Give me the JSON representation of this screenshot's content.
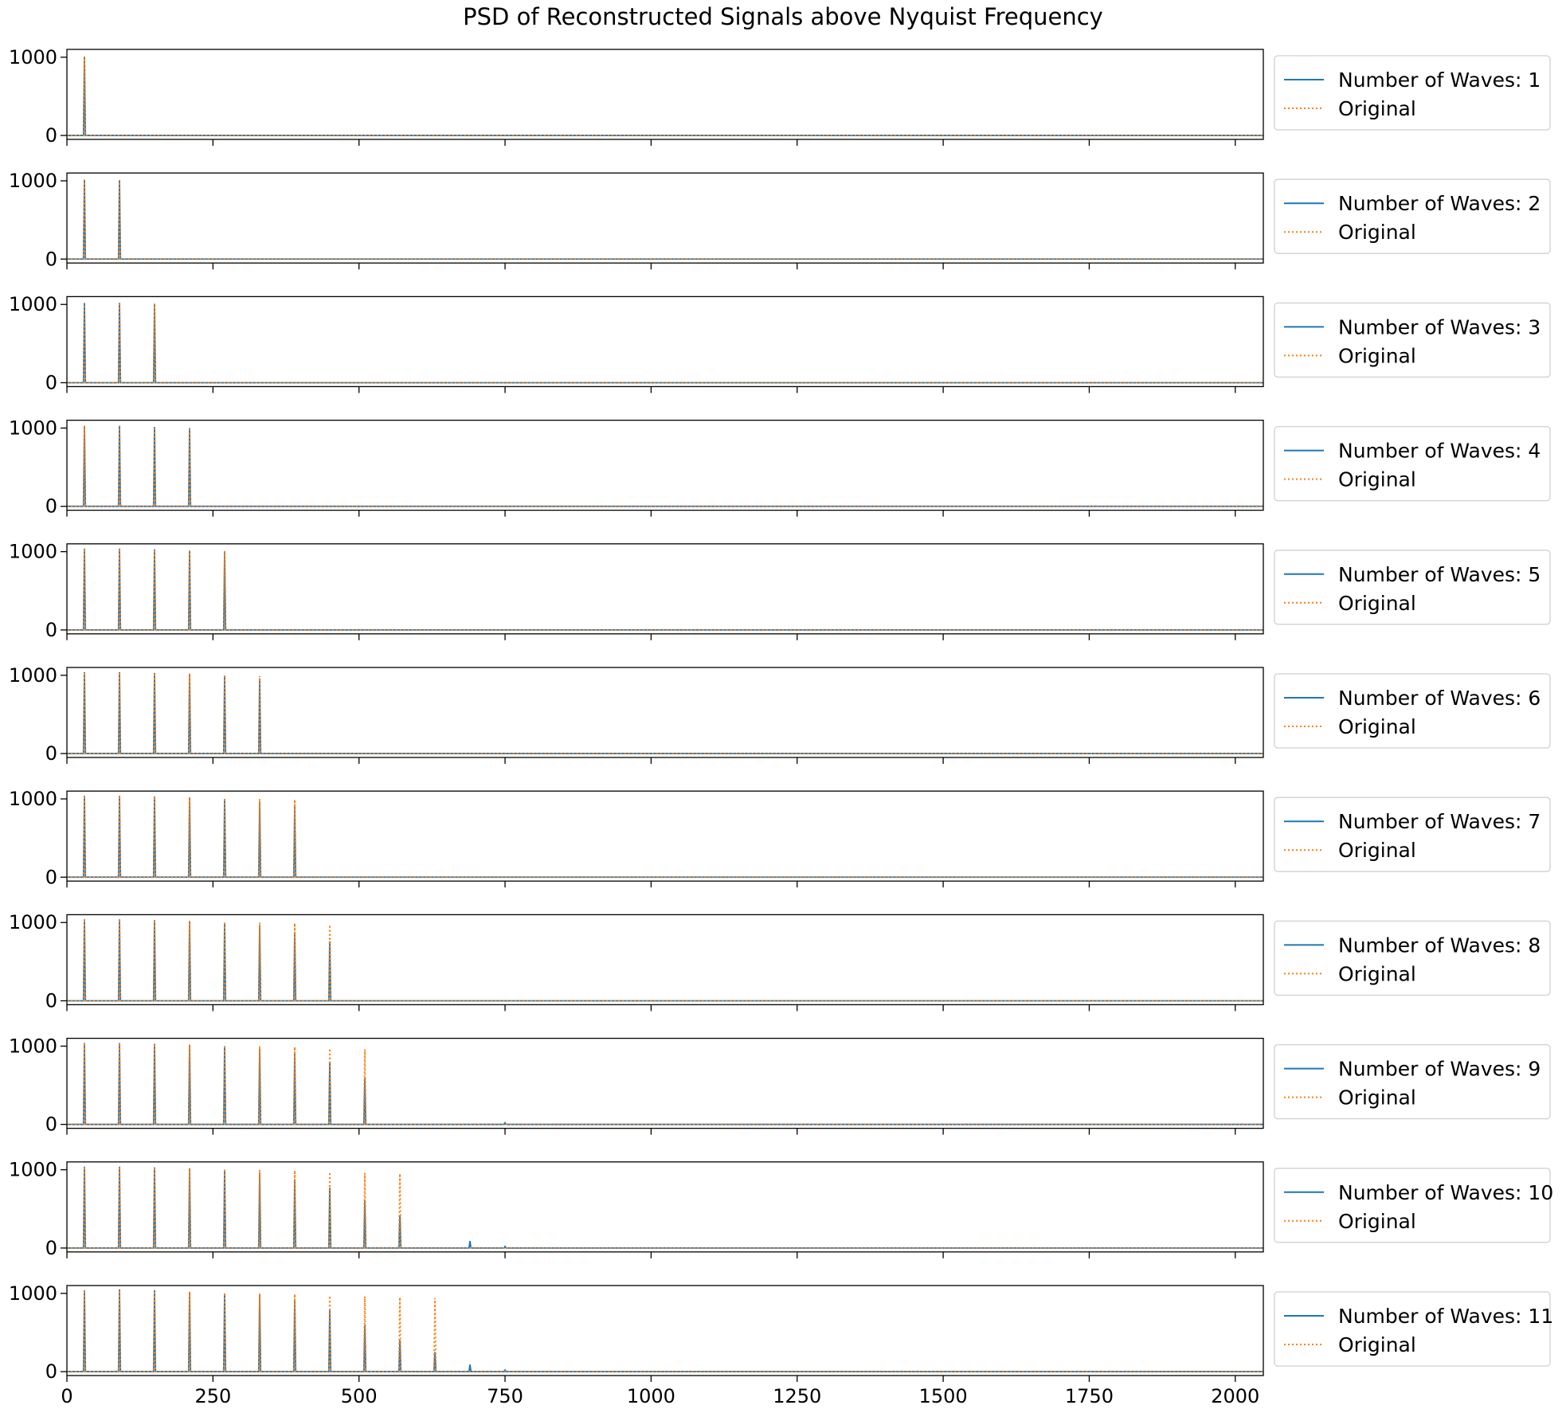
{
  "chart_data": {
    "type": "line",
    "title": "PSD of Reconstructed Signals above Nyquist Frequency",
    "xlim": [
      0,
      2048
    ],
    "ylim": [
      -50,
      1100
    ],
    "xticks": [
      0,
      250,
      500,
      750,
      1000,
      1250,
      1500,
      1750,
      2000
    ],
    "yticks": [
      0,
      1000
    ],
    "colors": {
      "reconstructed": "#1f77b4",
      "original": "#ff7f0e"
    },
    "original_peak_x": [
      30,
      90,
      150,
      210,
      270,
      330,
      390,
      450,
      510,
      570,
      630
    ],
    "panels": [
      {
        "series": [
          {
            "name": "Number of Waves: 1",
            "style": "solid",
            "peaks": [
              [
                30,
                1000
              ]
            ]
          },
          {
            "name": "Original",
            "style": "dotted",
            "peaks": [
              [
                30,
                1010
              ]
            ]
          }
        ]
      },
      {
        "series": [
          {
            "name": "Number of Waves: 2",
            "style": "solid",
            "peaks": [
              [
                30,
                1010
              ],
              [
                90,
                1005
              ]
            ]
          },
          {
            "name": "Original",
            "style": "dotted",
            "peaks": [
              [
                30,
                1015
              ],
              [
                90,
                1010
              ]
            ]
          }
        ]
      },
      {
        "series": [
          {
            "name": "Number of Waves: 3",
            "style": "solid",
            "peaks": [
              [
                30,
                1020
              ],
              [
                90,
                1020
              ],
              [
                150,
                1005
              ]
            ]
          },
          {
            "name": "Original",
            "style": "dotted",
            "peaks": [
              [
                30,
                1020
              ],
              [
                90,
                1025
              ],
              [
                150,
                1010
              ]
            ]
          }
        ]
      },
      {
        "series": [
          {
            "name": "Number of Waves: 4",
            "style": "solid",
            "peaks": [
              [
                30,
                1030
              ],
              [
                90,
                1030
              ],
              [
                150,
                1015
              ],
              [
                210,
                1000
              ]
            ]
          },
          {
            "name": "Original",
            "style": "dotted",
            "peaks": [
              [
                30,
                1030
              ],
              [
                90,
                1030
              ],
              [
                150,
                1015
              ],
              [
                210,
                1005
              ]
            ]
          }
        ]
      },
      {
        "series": [
          {
            "name": "Number of Waves: 5",
            "style": "solid",
            "peaks": [
              [
                30,
                1040
              ],
              [
                90,
                1040
              ],
              [
                150,
                1030
              ],
              [
                210,
                1010
              ],
              [
                270,
                1000
              ]
            ]
          },
          {
            "name": "Original",
            "style": "dotted",
            "peaks": [
              [
                30,
                1040
              ],
              [
                90,
                1040
              ],
              [
                150,
                1030
              ],
              [
                210,
                1015
              ],
              [
                270,
                1010
              ]
            ]
          }
        ]
      },
      {
        "series": [
          {
            "name": "Number of Waves: 6",
            "style": "solid",
            "peaks": [
              [
                30,
                1040
              ],
              [
                90,
                1040
              ],
              [
                150,
                1030
              ],
              [
                210,
                1020
              ],
              [
                270,
                980
              ],
              [
                330,
                960
              ]
            ]
          },
          {
            "name": "Original",
            "style": "dotted",
            "peaks": [
              [
                30,
                1040
              ],
              [
                90,
                1040
              ],
              [
                150,
                1030
              ],
              [
                210,
                1020
              ],
              [
                270,
                1010
              ],
              [
                330,
                990
              ]
            ]
          }
        ]
      },
      {
        "series": [
          {
            "name": "Number of Waves: 7",
            "style": "solid",
            "peaks": [
              [
                30,
                1040
              ],
              [
                90,
                1040
              ],
              [
                150,
                1030
              ],
              [
                210,
                1020
              ],
              [
                270,
                1000
              ],
              [
                330,
                960
              ],
              [
                390,
                900
              ]
            ]
          },
          {
            "name": "Original",
            "style": "dotted",
            "peaks": [
              [
                30,
                1040
              ],
              [
                90,
                1040
              ],
              [
                150,
                1030
              ],
              [
                210,
                1020
              ],
              [
                270,
                1010
              ],
              [
                330,
                1000
              ],
              [
                390,
                990
              ]
            ]
          }
        ]
      },
      {
        "series": [
          {
            "name": "Number of Waves: 8",
            "style": "solid",
            "peaks": [
              [
                30,
                1040
              ],
              [
                90,
                1040
              ],
              [
                150,
                1030
              ],
              [
                210,
                1020
              ],
              [
                270,
                990
              ],
              [
                330,
                960
              ],
              [
                390,
                880
              ],
              [
                450,
                760
              ]
            ]
          },
          {
            "name": "Original",
            "style": "dotted",
            "peaks": [
              [
                30,
                1040
              ],
              [
                90,
                1040
              ],
              [
                150,
                1030
              ],
              [
                210,
                1020
              ],
              [
                270,
                1010
              ],
              [
                330,
                1000
              ],
              [
                390,
                990
              ],
              [
                450,
                970
              ]
            ]
          }
        ]
      },
      {
        "series": [
          {
            "name": "Number of Waves: 9",
            "style": "solid",
            "peaks": [
              [
                30,
                1040
              ],
              [
                90,
                1040
              ],
              [
                150,
                1030
              ],
              [
                210,
                1020
              ],
              [
                270,
                1000
              ],
              [
                330,
                970
              ],
              [
                390,
                900
              ],
              [
                450,
                790
              ],
              [
                510,
                600
              ],
              [
                750,
                20
              ]
            ]
          },
          {
            "name": "Original",
            "style": "dotted",
            "peaks": [
              [
                30,
                1040
              ],
              [
                90,
                1040
              ],
              [
                150,
                1030
              ],
              [
                210,
                1020
              ],
              [
                270,
                1010
              ],
              [
                330,
                1000
              ],
              [
                390,
                990
              ],
              [
                450,
                970
              ],
              [
                510,
                960
              ]
            ]
          }
        ]
      },
      {
        "series": [
          {
            "name": "Number of Waves: 10",
            "style": "solid",
            "peaks": [
              [
                30,
                1040
              ],
              [
                90,
                1040
              ],
              [
                150,
                1030
              ],
              [
                210,
                1020
              ],
              [
                270,
                1000
              ],
              [
                330,
                960
              ],
              [
                390,
                880
              ],
              [
                450,
                770
              ],
              [
                510,
                610
              ],
              [
                570,
                420
              ],
              [
                690,
                90
              ],
              [
                750,
                20
              ]
            ]
          },
          {
            "name": "Original",
            "style": "dotted",
            "peaks": [
              [
                30,
                1040
              ],
              [
                90,
                1040
              ],
              [
                150,
                1030
              ],
              [
                210,
                1020
              ],
              [
                270,
                1010
              ],
              [
                330,
                1000
              ],
              [
                390,
                990
              ],
              [
                450,
                970
              ],
              [
                510,
                960
              ],
              [
                570,
                950
              ]
            ]
          }
        ]
      },
      {
        "series": [
          {
            "name": "Number of Waves: 11",
            "style": "solid",
            "peaks": [
              [
                30,
                1040
              ],
              [
                90,
                1050
              ],
              [
                150,
                1040
              ],
              [
                210,
                1020
              ],
              [
                270,
                1000
              ],
              [
                330,
                980
              ],
              [
                390,
                920
              ],
              [
                450,
                780
              ],
              [
                510,
                600
              ],
              [
                570,
                400
              ],
              [
                630,
                250
              ],
              [
                690,
                90
              ],
              [
                750,
                20
              ]
            ]
          },
          {
            "name": "Original",
            "style": "dotted",
            "peaks": [
              [
                30,
                1040
              ],
              [
                90,
                1040
              ],
              [
                150,
                1030
              ],
              [
                210,
                1020
              ],
              [
                270,
                1010
              ],
              [
                330,
                1000
              ],
              [
                390,
                990
              ],
              [
                450,
                970
              ],
              [
                510,
                960
              ],
              [
                570,
                950
              ],
              [
                630,
                940
              ]
            ]
          }
        ]
      }
    ]
  }
}
